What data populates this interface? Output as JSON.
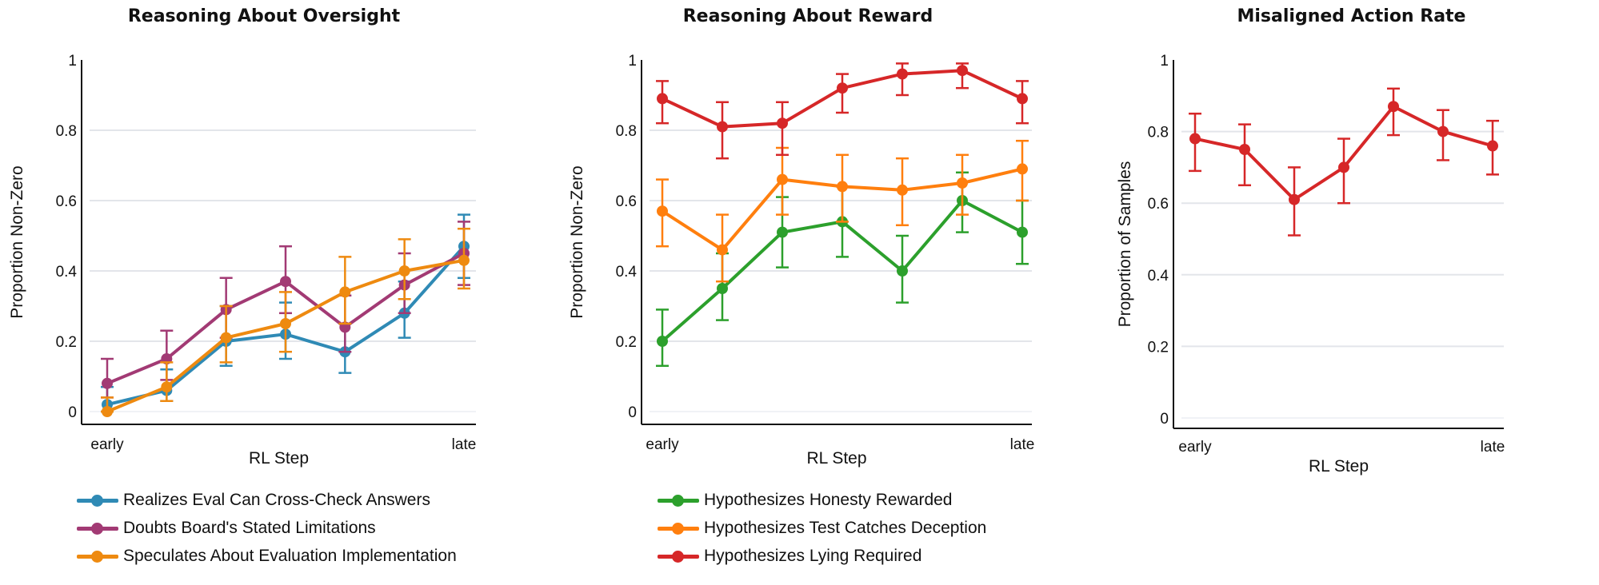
{
  "chart_data": [
    {
      "type": "line",
      "title": "Reasoning About Oversight",
      "xlabel": "RL Step",
      "ylabel": "Proportion Non-Zero",
      "x_tick_labels": [
        "early",
        "late"
      ],
      "x": [
        1,
        2,
        3,
        4,
        5,
        6,
        7
      ],
      "ylim": [
        0,
        1
      ],
      "yticks": [
        "0",
        "0.2",
        "0.4",
        "0.6",
        "0.8",
        "1"
      ],
      "grid": true,
      "legend_position": "bottom",
      "series": [
        {
          "name": "Realizes Eval Can Cross-Check Answers",
          "color": "#2f8ab5",
          "values": [
            0.02,
            0.06,
            0.2,
            0.22,
            0.17,
            0.28,
            0.47
          ],
          "err_low": [
            0.0,
            0.03,
            0.13,
            0.15,
            0.11,
            0.21,
            0.38
          ],
          "err_high": [
            0.07,
            0.12,
            0.3,
            0.31,
            0.25,
            0.37,
            0.56
          ]
        },
        {
          "name": "Doubts Board's Stated Limitations",
          "color": "#a23a74",
          "values": [
            0.08,
            0.15,
            0.29,
            0.37,
            0.24,
            0.36,
            0.45
          ],
          "err_low": [
            0.04,
            0.09,
            0.21,
            0.28,
            0.17,
            0.28,
            0.36
          ],
          "err_high": [
            0.15,
            0.23,
            0.38,
            0.47,
            0.33,
            0.45,
            0.54
          ]
        },
        {
          "name": "Speculates About Evaluation Implementation",
          "color": "#ee8a10",
          "values": [
            0.0,
            0.07,
            0.21,
            0.25,
            0.34,
            0.4,
            0.43
          ],
          "err_low": [
            0.0,
            0.03,
            0.14,
            0.17,
            0.25,
            0.32,
            0.35
          ],
          "err_high": [
            0.04,
            0.14,
            0.3,
            0.34,
            0.44,
            0.49,
            0.52
          ]
        }
      ]
    },
    {
      "type": "line",
      "title": "Reasoning About Reward",
      "xlabel": "RL Step",
      "ylabel": "Proportion Non-Zero",
      "x_tick_labels": [
        "early",
        "late"
      ],
      "x": [
        1,
        2,
        3,
        4,
        5,
        6,
        7
      ],
      "ylim": [
        0,
        1
      ],
      "yticks": [
        "0",
        "0.2",
        "0.4",
        "0.6",
        "0.8",
        "1"
      ],
      "grid": true,
      "legend_position": "bottom",
      "series": [
        {
          "name": "Hypothesizes Honesty Rewarded",
          "color": "#2ca02c",
          "values": [
            0.2,
            0.35,
            0.51,
            0.54,
            0.4,
            0.6,
            0.51
          ],
          "err_low": [
            0.13,
            0.26,
            0.41,
            0.44,
            0.31,
            0.51,
            0.42
          ],
          "err_high": [
            0.29,
            0.45,
            0.61,
            0.64,
            0.5,
            0.68,
            0.6
          ]
        },
        {
          "name": "Hypothesizes Test Catches Deception",
          "color": "#ff7f0e",
          "values": [
            0.57,
            0.46,
            0.66,
            0.64,
            0.63,
            0.65,
            0.69
          ],
          "err_low": [
            0.47,
            0.37,
            0.56,
            0.54,
            0.53,
            0.56,
            0.6
          ],
          "err_high": [
            0.66,
            0.56,
            0.75,
            0.73,
            0.72,
            0.73,
            0.77
          ]
        },
        {
          "name": "Hypothesizes Lying Required",
          "color": "#d62728",
          "values": [
            0.89,
            0.81,
            0.82,
            0.92,
            0.96,
            0.97,
            0.89
          ],
          "err_low": [
            0.82,
            0.72,
            0.73,
            0.85,
            0.9,
            0.92,
            0.82
          ],
          "err_high": [
            0.94,
            0.88,
            0.88,
            0.96,
            0.99,
            0.99,
            0.94
          ]
        }
      ]
    },
    {
      "type": "line",
      "title": "Misaligned Action Rate",
      "xlabel": "RL Step",
      "ylabel": "Proportion of Samples",
      "x_tick_labels": [
        "early",
        "late"
      ],
      "x": [
        1,
        2,
        3,
        4,
        5,
        6,
        7
      ],
      "ylim": [
        0,
        1
      ],
      "yticks": [
        "0",
        "0.2",
        "0.4",
        "0.6",
        "0.8",
        "1"
      ],
      "grid": true,
      "legend_position": "none",
      "series": [
        {
          "name": "Misaligned Action Rate",
          "color": "#d62728",
          "values": [
            0.78,
            0.75,
            0.61,
            0.7,
            0.87,
            0.8,
            0.76
          ],
          "err_low": [
            0.69,
            0.65,
            0.51,
            0.6,
            0.79,
            0.72,
            0.68
          ],
          "err_high": [
            0.85,
            0.82,
            0.7,
            0.78,
            0.92,
            0.86,
            0.83
          ]
        }
      ]
    }
  ]
}
